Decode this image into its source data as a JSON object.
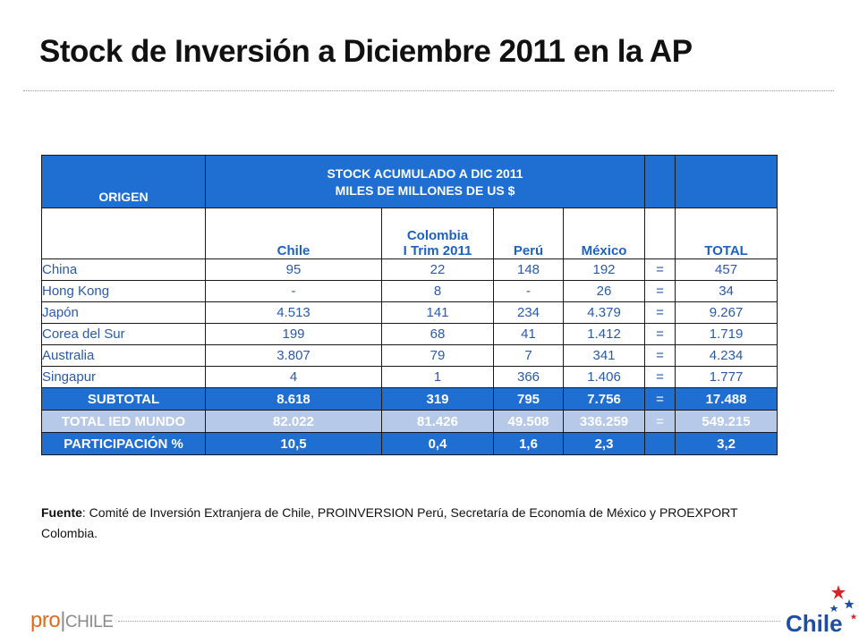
{
  "title": "Stock de Inversión a Diciembre 2011 en la AP",
  "table": {
    "origin_label": "ORIGEN",
    "stock_title_line1": "STOCK ACUMULADO A DIC 2011",
    "stock_title_line2": "MILES DE MILLONES DE US $",
    "columns": {
      "chile": "Chile",
      "colombia_line1": "Colombia",
      "colombia_line2": "I Trim 2011",
      "peru": "Perú",
      "mexico": "México",
      "eq": "",
      "total": "TOTAL"
    },
    "rows": [
      {
        "origin": "China",
        "chile": "95",
        "colombia": "22",
        "peru": "148",
        "mexico": "192",
        "eq": "=",
        "total": "457"
      },
      {
        "origin": "Hong Kong",
        "chile": "-",
        "colombia": "8",
        "peru": "-",
        "mexico": "26",
        "eq": "=",
        "total": "34"
      },
      {
        "origin": "Japón",
        "chile": "4.513",
        "colombia": "141",
        "peru": "234",
        "mexico": "4.379",
        "eq": "=",
        "total": "9.267"
      },
      {
        "origin": "Corea del Sur",
        "chile": "199",
        "colombia": "68",
        "peru": "41",
        "mexico": "1.412",
        "eq": "=",
        "total": "1.719"
      },
      {
        "origin": "Australia",
        "chile": "3.807",
        "colombia": "79",
        "peru": "7",
        "mexico": "341",
        "eq": "=",
        "total": "4.234"
      },
      {
        "origin": "Singapur",
        "chile": "4",
        "colombia": "1",
        "peru": "366",
        "mexico": "1.406",
        "eq": "=",
        "total": "1.777"
      }
    ],
    "subtotal": {
      "label": "SUBTOTAL",
      "chile": "8.618",
      "colombia": "319",
      "peru": "795",
      "mexico": "7.756",
      "eq": "=",
      "total": "17.488"
    },
    "world": {
      "label": "TOTAL IED MUNDO",
      "chile": "82.022",
      "colombia": "81.426",
      "peru": "49.508",
      "mexico": "336.259",
      "eq": "=",
      "total": "549.215"
    },
    "share": {
      "label": "PARTICIPACIÓN %",
      "chile": "10,5",
      "colombia": "0,4",
      "peru": "1,6",
      "mexico": "2,3",
      "eq": "",
      "total": "3,2"
    }
  },
  "source": {
    "label": "Fuente",
    "text": ": Comité de Inversión Extranjera de Chile, PROINVERSION Perú, Secretaría de Economía de México y PROEXPORT Colombia."
  },
  "footer": {
    "brand_pro": "pro",
    "brand_bar": "|",
    "brand_chile": "CHILE",
    "logo_text": "Chile"
  },
  "colors": {
    "header_blue": "#1f6fd2",
    "data_text_blue": "#2a5aa8",
    "world_row_bg": "#b7c9e8",
    "brand_orange": "#e36a1c"
  },
  "icons": [
    "stars-icon"
  ]
}
